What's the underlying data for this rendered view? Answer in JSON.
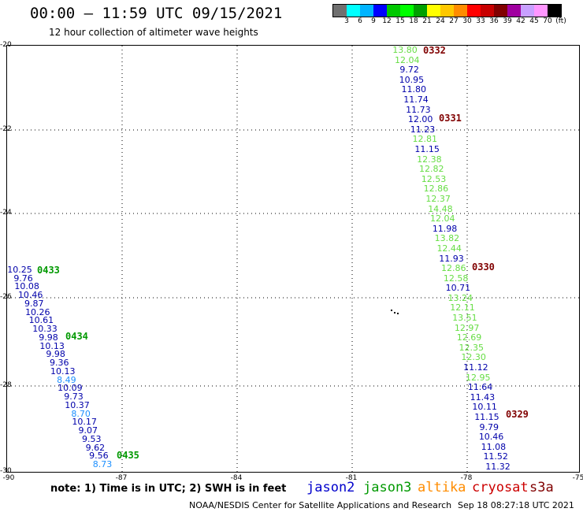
{
  "header": {
    "title": "00:00 – 11:59 UTC 09/15/2021",
    "subtitle": "12 hour collection of altimeter wave heights"
  },
  "scale": {
    "colors": [
      "#707070",
      "#00ffff",
      "#00b4ff",
      "#0000ff",
      "#00c800",
      "#00ff00",
      "#00a000",
      "#ffff00",
      "#ffc800",
      "#ff8c00",
      "#ff0000",
      "#c80000",
      "#800000",
      "#a000a0",
      "#c8a0ff",
      "#ff96ff",
      "#000000"
    ],
    "labels": [
      "3",
      "6",
      "9",
      "12",
      "15",
      "18",
      "21",
      "24",
      "27",
      "30",
      "33",
      "36",
      "39",
      "42",
      "45",
      "70",
      "(ft)"
    ]
  },
  "axes": {
    "y_ticks": [
      "-20",
      "-22",
      "-24",
      "-26",
      "-28",
      "-30"
    ],
    "x_ticks": [
      "-90",
      "-87",
      "-84",
      "-81",
      "-78",
      "-75"
    ]
  },
  "colors": {
    "jason2": "#0000cc",
    "jason3": "#009900",
    "altika": "#ff8c00",
    "cryosat": "#cc0000",
    "s3a": "#800000",
    "swh_blue": "#0000aa",
    "swh_green": "#66dd44",
    "swh_cyan": "#1e90ff"
  },
  "tracks": [
    {
      "time": "0332",
      "time_color": "#800000",
      "points": [
        {
          "v": "13.80",
          "c": "#66dd44"
        },
        {
          "v": "12.04",
          "c": "#66dd44"
        },
        {
          "v": "9.72",
          "c": "#0000aa"
        },
        {
          "v": "10.95",
          "c": "#0000aa"
        },
        {
          "v": "11.80",
          "c": "#0000aa"
        },
        {
          "v": "11.74",
          "c": "#0000aa"
        },
        {
          "v": "11.73",
          "c": "#0000aa"
        },
        {
          "v": "12.00",
          "c": "#0000aa"
        },
        {
          "v": "11.23",
          "c": "#0000aa"
        },
        {
          "v": "12.81",
          "c": "#66dd44"
        },
        {
          "v": "11.15",
          "c": "#0000aa"
        },
        {
          "v": "12.38",
          "c": "#66dd44"
        },
        {
          "v": "12.82",
          "c": "#66dd44"
        },
        {
          "v": "12.53",
          "c": "#66dd44"
        },
        {
          "v": "12.86",
          "c": "#66dd44"
        },
        {
          "v": "12.37",
          "c": "#66dd44"
        },
        {
          "v": "14.48",
          "c": "#66dd44"
        },
        {
          "v": "12.04",
          "c": "#66dd44"
        },
        {
          "v": "11.98",
          "c": "#0000aa"
        },
        {
          "v": "13.82",
          "c": "#66dd44"
        },
        {
          "v": "12.44",
          "c": "#66dd44"
        },
        {
          "v": "11.93",
          "c": "#0000aa"
        },
        {
          "v": "12.86",
          "c": "#66dd44"
        },
        {
          "v": "12.58",
          "c": "#66dd44"
        },
        {
          "v": "10.71",
          "c": "#0000aa"
        },
        {
          "v": "13.24",
          "c": "#66dd44"
        },
        {
          "v": "12.11",
          "c": "#66dd44"
        },
        {
          "v": "13.51",
          "c": "#66dd44"
        },
        {
          "v": "12.97",
          "c": "#66dd44"
        },
        {
          "v": "12.69",
          "c": "#66dd44"
        },
        {
          "v": "12.35",
          "c": "#66dd44"
        },
        {
          "v": "12.30",
          "c": "#66dd44"
        },
        {
          "v": "11.12",
          "c": "#0000aa"
        },
        {
          "v": "12.95",
          "c": "#66dd44"
        },
        {
          "v": "11.64",
          "c": "#0000aa"
        },
        {
          "v": "11.43",
          "c": "#0000aa"
        },
        {
          "v": "10.11",
          "c": "#0000aa"
        },
        {
          "v": "11.15",
          "c": "#0000aa"
        },
        {
          "v": "9.79",
          "c": "#0000aa"
        },
        {
          "v": "10.46",
          "c": "#0000aa"
        },
        {
          "v": "11.08",
          "c": "#0000aa"
        },
        {
          "v": "11.52",
          "c": "#0000aa"
        },
        {
          "v": "11.32",
          "c": "#0000aa"
        }
      ],
      "labels": [
        {
          "t": "0332",
          "c": "#800000"
        },
        {
          "t": "0331",
          "c": "#800000"
        },
        {
          "t": "0330",
          "c": "#800000"
        },
        {
          "t": "0329",
          "c": "#800000"
        }
      ]
    },
    {
      "time": "0433",
      "time_color": "#009900",
      "points": [
        {
          "v": "10.25",
          "c": "#0000aa"
        },
        {
          "v": "9.76",
          "c": "#0000aa"
        },
        {
          "v": "10.08",
          "c": "#0000aa"
        },
        {
          "v": "10.46",
          "c": "#0000aa"
        },
        {
          "v": "9.87",
          "c": "#0000aa"
        },
        {
          "v": "10.26",
          "c": "#0000aa"
        },
        {
          "v": "10.61",
          "c": "#0000aa"
        },
        {
          "v": "10.33",
          "c": "#0000aa"
        },
        {
          "v": "9.98",
          "c": "#0000aa"
        },
        {
          "v": "10.13",
          "c": "#0000aa"
        },
        {
          "v": "9.98",
          "c": "#0000aa"
        },
        {
          "v": "9.36",
          "c": "#0000aa"
        },
        {
          "v": "10.13",
          "c": "#0000aa"
        },
        {
          "v": "8.49",
          "c": "#1e90ff"
        },
        {
          "v": "10.09",
          "c": "#0000aa"
        },
        {
          "v": "9.73",
          "c": "#0000aa"
        },
        {
          "v": "10.37",
          "c": "#0000aa"
        },
        {
          "v": "8.70",
          "c": "#1e90ff"
        },
        {
          "v": "10.17",
          "c": "#0000aa"
        },
        {
          "v": "9.07",
          "c": "#0000aa"
        },
        {
          "v": "9.53",
          "c": "#0000aa"
        },
        {
          "v": "9.62",
          "c": "#0000aa"
        },
        {
          "v": "9.56",
          "c": "#0000aa"
        },
        {
          "v": "8.73",
          "c": "#1e90ff"
        }
      ],
      "labels": [
        {
          "t": "0433",
          "c": "#009900"
        },
        {
          "t": "0434",
          "c": "#009900"
        },
        {
          "t": "0435",
          "c": "#009900"
        }
      ]
    }
  ],
  "footer": {
    "note": "note:  1) Time is in UTC;  2) SWH is in feet",
    "satellites": [
      {
        "name": "jason2",
        "color": "#0000cc"
      },
      {
        "name": "jason3",
        "color": "#009900"
      },
      {
        "name": "altika",
        "color": "#ff8c00"
      },
      {
        "name": "cryosat",
        "color": "#cc0000"
      },
      {
        "name": "s3a",
        "color": "#800000"
      }
    ],
    "credit": "NOAA/NESDIS Center for Satellite Applications and Research",
    "timestamp": "Sep 18 08:27:18 UTC 2021"
  }
}
